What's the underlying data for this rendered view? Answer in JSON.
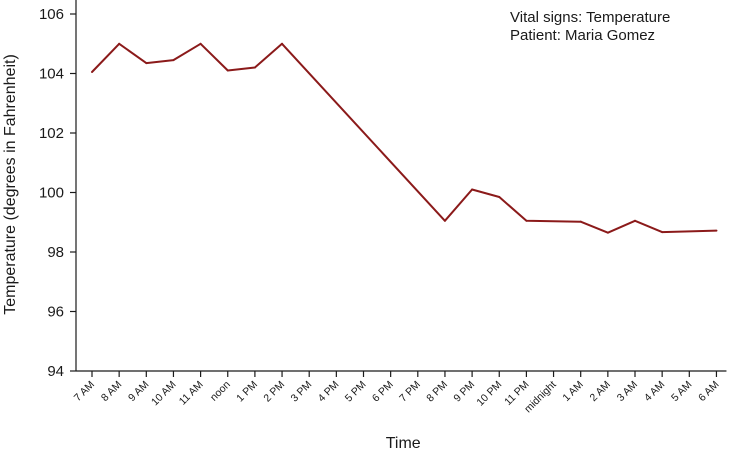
{
  "chart_data": {
    "type": "line",
    "annotations": [
      "Vital signs: Temperature",
      "Patient: Maria Gomez"
    ],
    "xlabel": "Time",
    "ylabel": "Temperature (degrees in Fahrenheit)",
    "ylim": [
      94,
      106
    ],
    "yticks": [
      94,
      96,
      98,
      100,
      102,
      104,
      106
    ],
    "categories": [
      "7 AM",
      "8 AM",
      "9 AM",
      "10 AM",
      "11 AM",
      "noon",
      "1 PM",
      "2 PM",
      "3 PM",
      "4 PM",
      "5 PM",
      "6 PM",
      "7 PM",
      "8 PM",
      "9 PM",
      "10 PM",
      "11 PM",
      "midnight",
      "1 AM",
      "2 AM",
      "3 AM",
      "4 AM",
      "5 AM",
      "6 AM"
    ],
    "grid": false,
    "colors": {
      "line": "#8b1a1a",
      "axis": "#1a1a1a"
    },
    "series": [
      {
        "points": [
          [
            0,
            104.05
          ],
          [
            1,
            105.0
          ],
          [
            2,
            104.35
          ],
          [
            3,
            104.45
          ],
          [
            4,
            105.0
          ],
          [
            5,
            104.1
          ],
          [
            6,
            104.2
          ],
          [
            7,
            105.0
          ],
          [
            13,
            99.05
          ],
          [
            14,
            100.1
          ],
          [
            15,
            99.85
          ],
          [
            16,
            99.05
          ],
          [
            18,
            99.02
          ],
          [
            19,
            98.65
          ],
          [
            20,
            99.05
          ],
          [
            21,
            98.67
          ],
          [
            23,
            98.72
          ]
        ]
      }
    ]
  }
}
